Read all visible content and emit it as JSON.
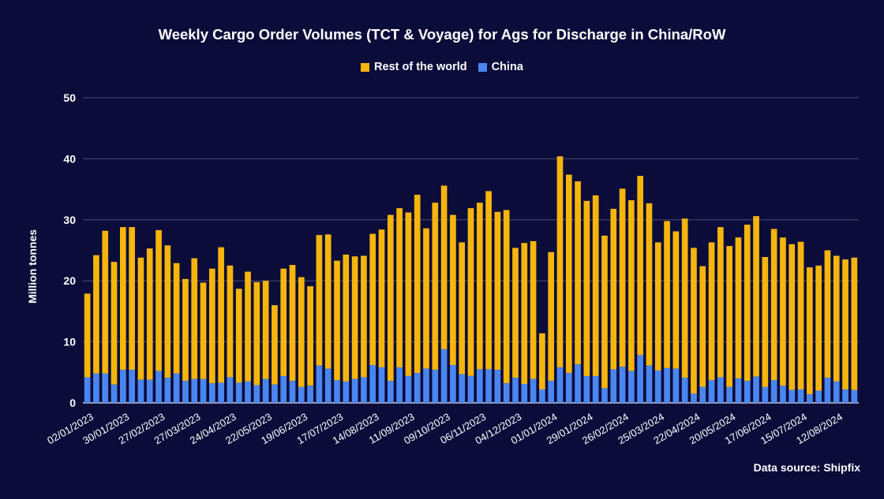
{
  "chart_data": {
    "type": "bar",
    "stacked": true,
    "title": "Weekly Cargo Order Volumes (TCT & Voyage) for Ags for Discharge in China/RoW",
    "ylabel": "Million tonnes",
    "ylim": [
      0,
      50
    ],
    "yticks": [
      0,
      10,
      20,
      30,
      40,
      50
    ],
    "grid": true,
    "legend_position": "top-center",
    "x_tick_labels": [
      "02/01/2023",
      "30/01/2023",
      "27/02/2023",
      "27/03/2023",
      "24/04/2023",
      "22/05/2023",
      "19/06/2023",
      "17/07/2023",
      "14/08/2023",
      "11/09/2023",
      "09/10/2023",
      "06/11/2023",
      "04/12/2023",
      "01/01/2024",
      "29/01/2024",
      "26/02/2024",
      "25/03/2024",
      "22/04/2024",
      "20/05/2024",
      "17/06/2024",
      "15/07/2024",
      "12/08/2024"
    ],
    "categories": [
      "02/01/2023",
      "09/01/2023",
      "16/01/2023",
      "23/01/2023",
      "30/01/2023",
      "06/02/2023",
      "13/02/2023",
      "20/02/2023",
      "27/02/2023",
      "06/03/2023",
      "13/03/2023",
      "20/03/2023",
      "27/03/2023",
      "03/04/2023",
      "10/04/2023",
      "17/04/2023",
      "24/04/2023",
      "01/05/2023",
      "08/05/2023",
      "15/05/2023",
      "22/05/2023",
      "29/05/2023",
      "05/06/2023",
      "12/06/2023",
      "19/06/2023",
      "26/06/2023",
      "03/07/2023",
      "10/07/2023",
      "17/07/2023",
      "24/07/2023",
      "31/07/2023",
      "07/08/2023",
      "14/08/2023",
      "21/08/2023",
      "28/08/2023",
      "04/09/2023",
      "11/09/2023",
      "18/09/2023",
      "25/09/2023",
      "02/10/2023",
      "09/10/2023",
      "16/10/2023",
      "23/10/2023",
      "30/10/2023",
      "06/11/2023",
      "13/11/2023",
      "20/11/2023",
      "27/11/2023",
      "04/12/2023",
      "11/12/2023",
      "18/12/2023",
      "25/12/2023",
      "01/01/2024",
      "08/01/2024",
      "15/01/2024",
      "22/01/2024",
      "29/01/2024",
      "05/02/2024",
      "12/02/2024",
      "19/02/2024",
      "26/02/2024",
      "04/03/2024",
      "11/03/2024",
      "18/03/2024",
      "25/03/2024",
      "01/04/2024",
      "08/04/2024",
      "15/04/2024",
      "22/04/2024",
      "29/04/2024",
      "06/05/2024",
      "13/05/2024",
      "20/05/2024",
      "27/05/2024",
      "03/06/2024",
      "10/06/2024",
      "17/06/2024",
      "24/06/2024",
      "01/07/2024",
      "08/07/2024",
      "15/07/2024",
      "22/07/2024",
      "29/07/2024",
      "05/08/2024",
      "12/08/2024",
      "19/08/2024",
      "26/08/2024"
    ],
    "series": [
      {
        "name": "China",
        "color": "#4a86f0",
        "values": [
          4.2,
          4.8,
          4.8,
          3.0,
          5.4,
          5.4,
          3.8,
          3.8,
          5.2,
          4.1,
          4.8,
          3.6,
          3.9,
          3.9,
          3.2,
          3.3,
          4.2,
          3.3,
          3.5,
          2.9,
          3.9,
          3.0,
          4.4,
          3.6,
          2.6,
          2.8,
          6.1,
          5.6,
          3.7,
          3.5,
          3.9,
          4.2,
          6.2,
          5.8,
          3.6,
          5.8,
          4.4,
          4.9,
          5.6,
          5.4,
          8.8,
          6.2,
          4.7,
          4.4,
          5.5,
          5.5,
          5.4,
          3.2,
          4.1,
          3.1,
          3.9,
          2.2,
          3.6,
          5.8,
          4.9,
          6.3,
          4.4,
          4.4,
          2.4,
          5.5,
          5.9,
          5.2,
          7.8,
          6.1,
          5.3,
          5.7,
          5.6,
          4.1,
          1.5,
          2.6,
          3.7,
          4.2,
          2.6,
          4.0,
          3.6,
          4.3,
          2.6,
          3.7,
          2.8,
          2.1,
          2.2,
          1.4,
          2.0,
          4.1,
          3.5,
          2.2,
          2.1
        ]
      },
      {
        "name": "Rest of the world",
        "color": "#f5b50c",
        "values": [
          13.7,
          19.4,
          23.4,
          20.1,
          23.4,
          23.4,
          20.0,
          21.5,
          23.1,
          21.7,
          18.1,
          16.7,
          19.8,
          15.8,
          18.8,
          22.2,
          18.3,
          15.4,
          18.0,
          16.9,
          16.1,
          13.0,
          17.6,
          19.0,
          18.0,
          16.3,
          21.4,
          22.0,
          19.6,
          20.8,
          20.1,
          19.9,
          21.5,
          22.6,
          27.2,
          26.1,
          26.8,
          29.2,
          23.0,
          27.4,
          26.8,
          24.6,
          21.6,
          27.5,
          27.3,
          29.2,
          25.9,
          28.4,
          21.3,
          23.1,
          22.6,
          9.2,
          21.1,
          34.6,
          32.5,
          30.0,
          28.7,
          29.6,
          25.0,
          26.3,
          29.2,
          28.0,
          29.4,
          26.6,
          21.0,
          24.1,
          22.5,
          26.1,
          23.9,
          19.8,
          22.6,
          24.6,
          23.1,
          23.1,
          25.6,
          26.3,
          21.3,
          24.8,
          24.3,
          23.9,
          24.2,
          20.8,
          20.5,
          20.9,
          20.6,
          21.3,
          21.7
        ]
      }
    ]
  },
  "source_text": "Data source: Shipfix"
}
